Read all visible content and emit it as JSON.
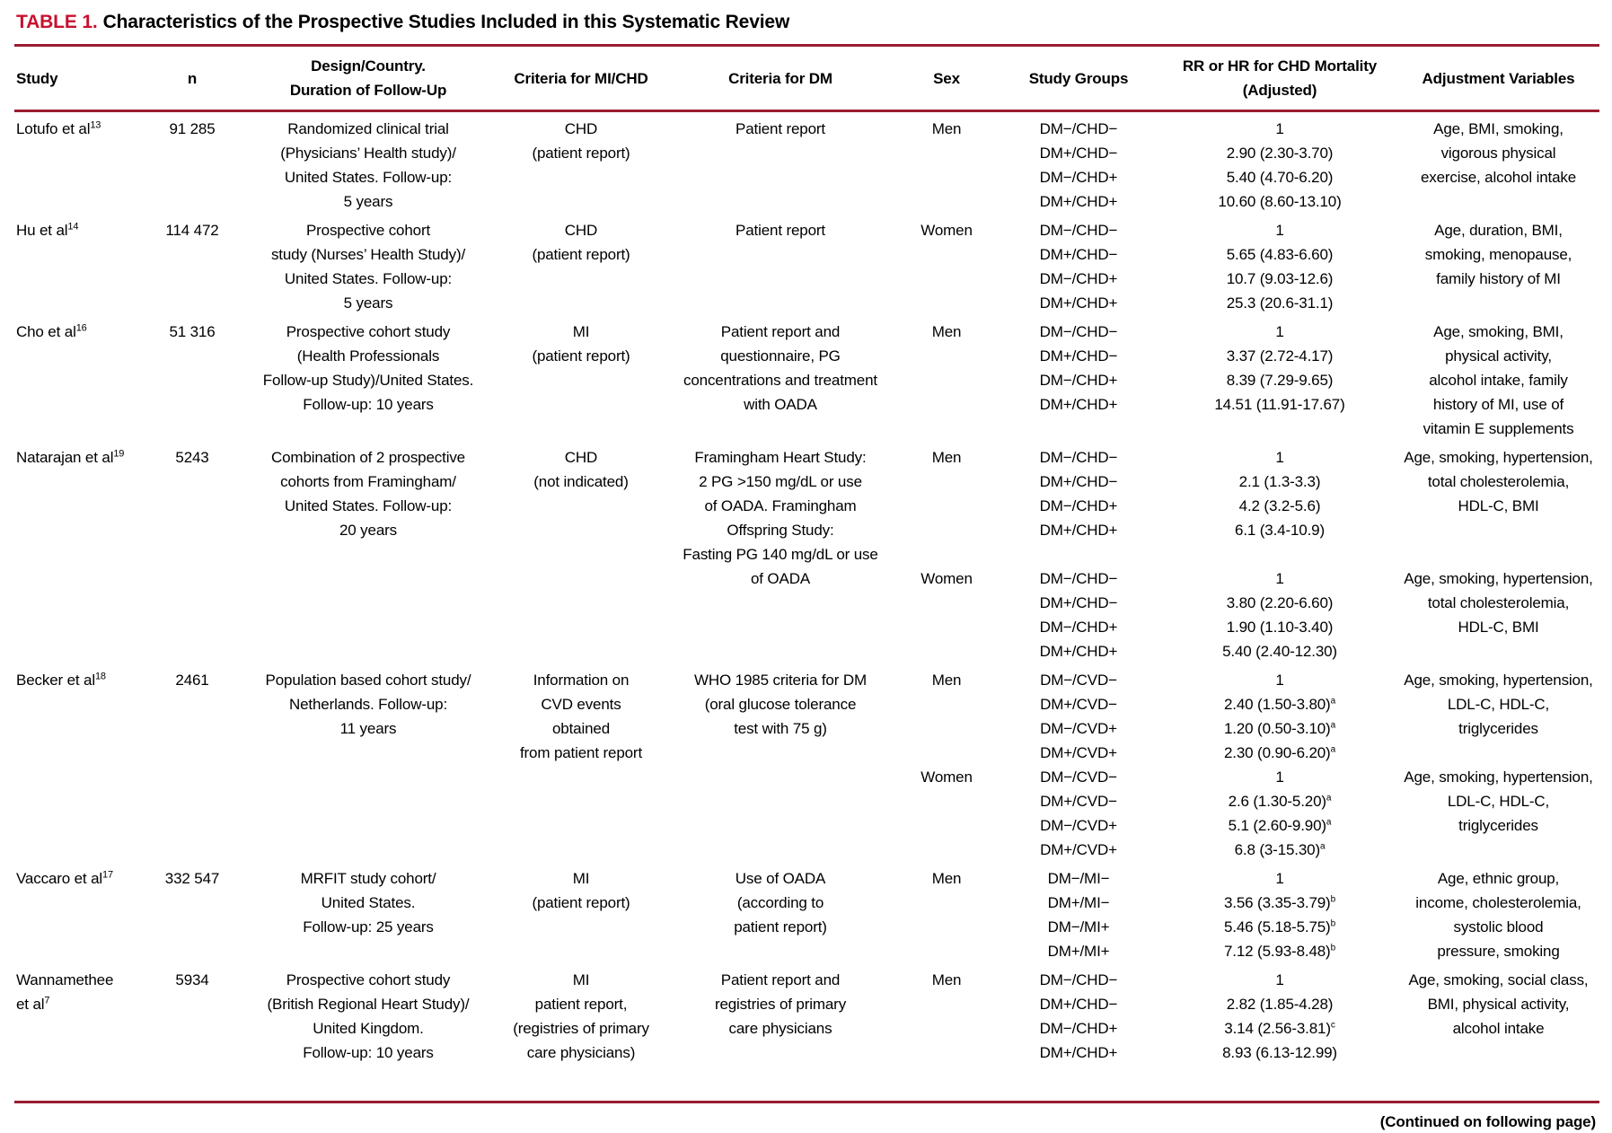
{
  "title": {
    "label": "TABLE 1.",
    "text": "Characteristics of the Prospective Studies Included in this Systematic Review"
  },
  "colors": {
    "rule": "#9a1c30",
    "title_red": "#c8102e"
  },
  "columns": [
    "Study",
    "n",
    "Design/Country.\nDuration of Follow-Up",
    "Criteria for MI/CHD",
    "Criteria for DM",
    "Sex",
    "Study Groups",
    "RR or HR for CHD Mortality\n(Adjusted)",
    "Adjustment Variables"
  ],
  "footer": "(Continued on following page)",
  "rows": [
    {
      "study": "Lotufo et al",
      "ref": "13",
      "n": "91 285",
      "design": "Randomized clinical trial\n(Physicians’ Health study)/\nUnited States. Follow-up:\n5 years",
      "criteria_mi": "CHD\n(patient report)",
      "criteria_dm": "Patient report",
      "blocks": [
        {
          "sex": "Men",
          "groups": [
            "DM−/CHD−",
            "DM+/CHD−",
            "DM−/CHD+",
            "DM+/CHD+"
          ],
          "rr": [
            {
              "v": "1"
            },
            {
              "v": "2.90 (2.30-3.70)"
            },
            {
              "v": "5.40 (4.70-6.20)"
            },
            {
              "v": "10.60 (8.60-13.10)"
            }
          ],
          "adjustment": "Age, BMI, smoking,\nvigorous physical\nexercise, alcohol intake"
        }
      ]
    },
    {
      "study": "Hu et al",
      "ref": "14",
      "n": "114 472",
      "design": "Prospective cohort\nstudy (Nurses’ Health Study)/\nUnited States. Follow-up:\n5 years",
      "criteria_mi": "CHD\n(patient report)",
      "criteria_dm": "Patient report",
      "blocks": [
        {
          "sex": "Women",
          "groups": [
            "DM−/CHD−",
            "DM+/CHD−",
            "DM−/CHD+",
            "DM+/CHD+"
          ],
          "rr": [
            {
              "v": "1"
            },
            {
              "v": "5.65 (4.83-6.60)"
            },
            {
              "v": "10.7 (9.03-12.6)"
            },
            {
              "v": "25.3 (20.6-31.1)"
            }
          ],
          "adjustment": "Age, duration, BMI,\nsmoking, menopause,\nfamily history of MI"
        }
      ]
    },
    {
      "study": "Cho et al",
      "ref": "16",
      "n": "51 316",
      "design": "Prospective cohort study\n(Health Professionals\nFollow-up Study)/United States.\nFollow-up: 10 years",
      "criteria_mi": "MI\n(patient report)",
      "criteria_dm": "Patient report and\nquestionnaire, PG\nconcentrations and treatment\nwith OADA",
      "blocks": [
        {
          "sex": "Men",
          "groups": [
            "DM−/CHD−",
            "DM+/CHD−",
            "DM−/CHD+",
            "DM+/CHD+"
          ],
          "rr": [
            {
              "v": "1"
            },
            {
              "v": "3.37 (2.72-4.17)"
            },
            {
              "v": "8.39 (7.29-9.65)"
            },
            {
              "v": "14.51 (11.91-17.67)"
            }
          ],
          "adjustment": "Age, smoking, BMI,\nphysical activity,\nalcohol intake, family\nhistory of MI, use of\nvitamin E supplements"
        }
      ]
    },
    {
      "study": "Natarajan et al",
      "ref": "19",
      "n": "5243",
      "design": "Combination of 2 prospective\ncohorts from Framingham/\nUnited States. Follow-up:\n20 years",
      "criteria_mi": "CHD\n(not indicated)",
      "criteria_dm": "Framingham Heart Study:\n2 PG >150 mg/dL or use\nof OADA. Framingham\nOffspring Study:\nFasting PG 140 mg/dL or use\nof OADA",
      "blocks": [
        {
          "sex": "Men",
          "groups": [
            "DM−/CHD−",
            "DM+/CHD−",
            "DM−/CHD+",
            "DM+/CHD+"
          ],
          "rr": [
            {
              "v": "1"
            },
            {
              "v": "2.1 (1.3-3.3)"
            },
            {
              "v": "4.2 (3.2-5.6)"
            },
            {
              "v": "6.1 (3.4-10.9)"
            }
          ],
          "adjustment": "Age, smoking, hypertension,\ntotal cholesterolemia,\nHDL-C, BMI"
        },
        {
          "sex": "Women",
          "gap": true,
          "groups": [
            "DM−/CHD−",
            "DM+/CHD−",
            "DM−/CHD+",
            "DM+/CHD+"
          ],
          "rr": [
            {
              "v": "1"
            },
            {
              "v": "3.80 (2.20-6.60)"
            },
            {
              "v": "1.90 (1.10-3.40)"
            },
            {
              "v": "5.40 (2.40-12.30)"
            }
          ],
          "adjustment": "Age, smoking, hypertension,\ntotal cholesterolemia,\nHDL-C, BMI"
        }
      ]
    },
    {
      "study": "Becker et al",
      "ref": "18",
      "n": "2461",
      "design": "Population based cohort study/\nNetherlands. Follow-up:\n11 years",
      "criteria_mi": "Information on\nCVD events\nobtained\nfrom patient report",
      "criteria_dm": "WHO 1985 criteria for DM\n(oral glucose tolerance\ntest with 75 g)",
      "blocks": [
        {
          "sex": "Men",
          "groups": [
            "DM−/CVD−",
            "DM+/CVD−",
            "DM−/CVD+",
            "DM+/CVD+"
          ],
          "rr": [
            {
              "v": "1"
            },
            {
              "v": "2.40 (1.50-3.80)",
              "note": "a"
            },
            {
              "v": "1.20 (0.50-3.10)",
              "note": "a"
            },
            {
              "v": "2.30 (0.90-6.20)",
              "note": "a"
            }
          ],
          "adjustment": "Age, smoking, hypertension,\nLDL-C, HDL-C,\ntriglycerides"
        },
        {
          "sex": "Women",
          "groups": [
            "DM−/CVD−",
            "DM+/CVD−",
            "DM−/CVD+",
            "DM+/CVD+"
          ],
          "rr": [
            {
              "v": "1"
            },
            {
              "v": "2.6 (1.30-5.20)",
              "note": "a"
            },
            {
              "v": "5.1 (2.60-9.90)",
              "note": "a"
            },
            {
              "v": "6.8 (3-15.30)",
              "note": "a"
            }
          ],
          "adjustment": "Age, smoking, hypertension,\nLDL-C, HDL-C,\ntriglycerides"
        }
      ]
    },
    {
      "study": "Vaccaro et al",
      "ref": "17",
      "n": "332 547",
      "design": "MRFIT study cohort/\nUnited States.\nFollow-up: 25 years",
      "criteria_mi": "MI\n(patient report)",
      "criteria_dm": "Use of OADA\n(according to\npatient report)",
      "blocks": [
        {
          "sex": "Men",
          "groups": [
            "DM−/MI−",
            "DM+/MI−",
            "DM−/MI+",
            "DM+/MI+"
          ],
          "rr": [
            {
              "v": "1"
            },
            {
              "v": "3.56 (3.35-3.79)",
              "note": "b"
            },
            {
              "v": "5.46 (5.18-5.75)",
              "note": "b"
            },
            {
              "v": "7.12 (5.93-8.48)",
              "note": "b"
            }
          ],
          "adjustment": "Age, ethnic group,\nincome, cholesterolemia,\nsystolic blood\npressure, smoking"
        }
      ]
    },
    {
      "study": "Wannamethee\net al",
      "ref": "7",
      "n": "5934",
      "design": "Prospective cohort study\n(British Regional Heart Study)/\nUnited Kingdom.\nFollow-up: 10 years",
      "criteria_mi": "MI\npatient report,\n(registries of primary\ncare physicians)",
      "criteria_dm": "Patient report and\nregistries of primary\ncare physicians",
      "blocks": [
        {
          "sex": "Men",
          "groups": [
            "DM−/CHD−",
            "DM+/CHD−",
            "DM−/CHD+",
            "DM+/CHD+"
          ],
          "rr": [
            {
              "v": "1"
            },
            {
              "v": "2.82 (1.85-4.28)"
            },
            {
              "v": "3.14 (2.56-3.81)",
              "note": "c"
            },
            {
              "v": "8.93 (6.13-12.99)"
            }
          ],
          "adjustment": "Age, smoking, social class,\nBMI, physical activity,\nalcohol intake"
        }
      ]
    }
  ]
}
